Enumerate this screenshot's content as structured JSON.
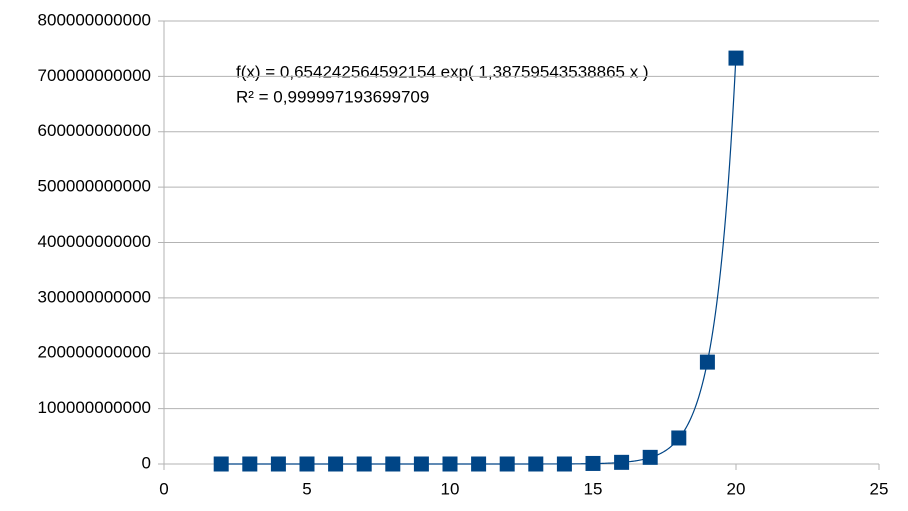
{
  "chart_data": {
    "type": "scatter",
    "x": [
      2,
      3,
      4,
      5,
      6,
      7,
      8,
      9,
      10,
      11,
      12,
      13,
      14,
      15,
      16,
      17,
      18,
      19,
      20
    ],
    "series": [
      {
        "color": "#004586",
        "values": [
          0,
          0,
          0,
          0,
          0,
          0,
          0,
          0,
          0,
          0,
          0,
          0,
          0,
          1000000000,
          3000000000,
          12000000000,
          47000000000,
          184000000000,
          733000000000
        ]
      }
    ],
    "trendline": {
      "type": "exponential",
      "a": 0.654242564592154,
      "b": 1.38759543538865,
      "color": "#004586",
      "equation": "f(x) = 0,654242564592154 exp( 1,38759543538865 x )",
      "r_squared": "R² = 0,999997193699709"
    },
    "xlim": [
      0,
      25
    ],
    "xticks": [
      0,
      5,
      10,
      15,
      20,
      25
    ],
    "ylim": [
      0,
      800000000000
    ],
    "yticks": [
      0,
      100000000000,
      200000000000,
      300000000000,
      400000000000,
      500000000000,
      600000000000,
      700000000000,
      800000000000
    ],
    "grid": true
  }
}
